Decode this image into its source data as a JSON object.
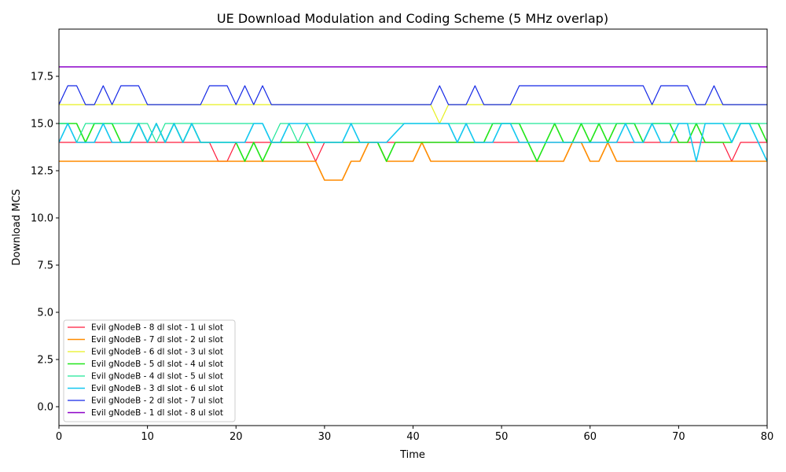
{
  "chart_data": {
    "type": "line",
    "title": "UE Download Modulation and Coding Scheme (5 MHz overlap)",
    "xlabel": "Time",
    "ylabel": "Download MCS",
    "xlim": [
      0,
      80
    ],
    "ylim": [
      -1,
      20
    ],
    "x_ticks": [
      0,
      10,
      20,
      30,
      40,
      50,
      60,
      70,
      80
    ],
    "y_ticks": [
      0.0,
      2.5,
      5.0,
      7.5,
      10.0,
      12.5,
      15.0,
      17.5
    ],
    "x_tick_labels": [
      "0",
      "10",
      "20",
      "30",
      "40",
      "50",
      "60",
      "70",
      "80"
    ],
    "y_tick_labels": [
      "0.0",
      "2.5",
      "5.0",
      "7.5",
      "10.0",
      "12.5",
      "15.0",
      "17.5"
    ],
    "grid": false,
    "legend_position": "lower-left",
    "series": [
      {
        "name": "Evil gNodeB - 8 dl slot - 1 ul slot",
        "color": "#ff1a3c",
        "width": 1.2,
        "points": [
          [
            0,
            14
          ],
          [
            17,
            14
          ],
          [
            18,
            13
          ],
          [
            19,
            13
          ],
          [
            20,
            14
          ],
          [
            28,
            14
          ],
          [
            29,
            13
          ],
          [
            30,
            14
          ],
          [
            75,
            14
          ],
          [
            76,
            13
          ],
          [
            77,
            14
          ],
          [
            80,
            14
          ]
        ]
      },
      {
        "name": "Evil gNodeB - 7 dl slot - 2 ul slot",
        "color": "#ff8c00",
        "width": 1.6,
        "points": [
          [
            0,
            13
          ],
          [
            29,
            13
          ],
          [
            30,
            12
          ],
          [
            32,
            12
          ],
          [
            33,
            13
          ],
          [
            34,
            13
          ],
          [
            35,
            14
          ],
          [
            36,
            14
          ],
          [
            37,
            13
          ],
          [
            40,
            13
          ],
          [
            41,
            14
          ],
          [
            42,
            13
          ],
          [
            57,
            13
          ],
          [
            58,
            14
          ],
          [
            59,
            14
          ],
          [
            60,
            13
          ],
          [
            61,
            13
          ],
          [
            62,
            14
          ],
          [
            63,
            13
          ],
          [
            80,
            13
          ]
        ]
      },
      {
        "name": "Evil gNodeB - 6 dl slot - 3 ul slot",
        "color": "#e6f01e",
        "width": 1.2,
        "points": [
          [
            0,
            16
          ],
          [
            42,
            16
          ],
          [
            43,
            15
          ],
          [
            44,
            16
          ],
          [
            80,
            16
          ]
        ]
      },
      {
        "name": "Evil gNodeB - 5 dl slot - 4 ul slot",
        "color": "#22e61a",
        "width": 1.6,
        "points": [
          [
            0,
            15
          ],
          [
            2,
            15
          ],
          [
            3,
            14
          ],
          [
            4,
            15
          ],
          [
            6,
            15
          ],
          [
            7,
            14
          ],
          [
            8,
            14
          ],
          [
            9,
            15
          ],
          [
            10,
            14
          ],
          [
            11,
            15
          ],
          [
            12,
            14
          ],
          [
            13,
            15
          ],
          [
            14,
            14
          ],
          [
            15,
            15
          ],
          [
            16,
            14
          ],
          [
            20,
            14
          ],
          [
            21,
            13
          ],
          [
            22,
            14
          ],
          [
            23,
            13
          ],
          [
            24,
            14
          ],
          [
            36,
            14
          ],
          [
            37,
            13
          ],
          [
            38,
            14
          ],
          [
            48,
            14
          ],
          [
            49,
            15
          ],
          [
            50,
            15
          ],
          [
            52,
            15
          ],
          [
            53,
            14
          ],
          [
            54,
            13
          ],
          [
            55,
            14
          ],
          [
            56,
            15
          ],
          [
            57,
            14
          ],
          [
            58,
            14
          ],
          [
            59,
            15
          ],
          [
            60,
            14
          ],
          [
            61,
            15
          ],
          [
            62,
            14
          ],
          [
            63,
            15
          ],
          [
            65,
            15
          ],
          [
            66,
            14
          ],
          [
            67,
            15
          ],
          [
            69,
            15
          ],
          [
            70,
            14
          ],
          [
            71,
            14
          ],
          [
            72,
            15
          ],
          [
            73,
            14
          ],
          [
            76,
            14
          ],
          [
            77,
            15
          ],
          [
            79,
            15
          ],
          [
            80,
            14
          ]
        ]
      },
      {
        "name": "Evil gNodeB - 4 dl slot - 5 ul slot",
        "color": "#1ee696",
        "width": 1.2,
        "points": [
          [
            0,
            15
          ],
          [
            1,
            15
          ],
          [
            2,
            14
          ],
          [
            3,
            15
          ],
          [
            10,
            15
          ],
          [
            11,
            14
          ],
          [
            12,
            15
          ],
          [
            23,
            15
          ],
          [
            24,
            14
          ],
          [
            25,
            15
          ],
          [
            26,
            15
          ],
          [
            27,
            14
          ],
          [
            28,
            15
          ],
          [
            80,
            15
          ]
        ]
      },
      {
        "name": "Evil gNodeB - 3 dl slot - 6 ul slot",
        "color": "#14c8f0",
        "width": 1.6,
        "points": [
          [
            0,
            14
          ],
          [
            1,
            15
          ],
          [
            2,
            14
          ],
          [
            4,
            14
          ],
          [
            5,
            15
          ],
          [
            6,
            14
          ],
          [
            8,
            14
          ],
          [
            9,
            15
          ],
          [
            10,
            14
          ],
          [
            11,
            15
          ],
          [
            12,
            14
          ],
          [
            13,
            15
          ],
          [
            14,
            14
          ],
          [
            15,
            15
          ],
          [
            16,
            14
          ],
          [
            21,
            14
          ],
          [
            22,
            15
          ],
          [
            23,
            15
          ],
          [
            24,
            14
          ],
          [
            25,
            14
          ],
          [
            26,
            15
          ],
          [
            28,
            15
          ],
          [
            29,
            14
          ],
          [
            32,
            14
          ],
          [
            33,
            15
          ],
          [
            34,
            14
          ],
          [
            37,
            14
          ],
          [
            39,
            15
          ],
          [
            44,
            15
          ],
          [
            45,
            14
          ],
          [
            46,
            15
          ],
          [
            47,
            14
          ],
          [
            49,
            14
          ],
          [
            50,
            15
          ],
          [
            51,
            15
          ],
          [
            52,
            14
          ],
          [
            63,
            14
          ],
          [
            64,
            15
          ],
          [
            65,
            14
          ],
          [
            66,
            14
          ],
          [
            67,
            15
          ],
          [
            68,
            14
          ],
          [
            69,
            14
          ],
          [
            70,
            15
          ],
          [
            71,
            15
          ],
          [
            72,
            13
          ],
          [
            73,
            15
          ],
          [
            75,
            15
          ],
          [
            76,
            14
          ],
          [
            77,
            15
          ],
          [
            78,
            15
          ],
          [
            80,
            13
          ]
        ]
      },
      {
        "name": "Evil gNodeB - 2 dl slot - 7 ul slot",
        "color": "#1428e6",
        "width": 1.2,
        "points": [
          [
            0,
            16
          ],
          [
            1,
            17
          ],
          [
            2,
            17
          ],
          [
            3,
            16
          ],
          [
            4,
            16
          ],
          [
            5,
            17
          ],
          [
            6,
            16
          ],
          [
            7,
            17
          ],
          [
            9,
            17
          ],
          [
            10,
            16
          ],
          [
            16,
            16
          ],
          [
            17,
            17
          ],
          [
            19,
            17
          ],
          [
            20,
            16
          ],
          [
            21,
            17
          ],
          [
            22,
            16
          ],
          [
            23,
            17
          ],
          [
            24,
            16
          ],
          [
            42,
            16
          ],
          [
            43,
            17
          ],
          [
            44,
            16
          ],
          [
            46,
            16
          ],
          [
            47,
            17
          ],
          [
            48,
            16
          ],
          [
            51,
            16
          ],
          [
            52,
            17
          ],
          [
            66,
            17
          ],
          [
            67,
            16
          ],
          [
            68,
            17
          ],
          [
            71,
            17
          ],
          [
            72,
            16
          ],
          [
            73,
            16
          ],
          [
            74,
            17
          ],
          [
            75,
            16
          ],
          [
            80,
            16
          ]
        ]
      },
      {
        "name": "Evil gNodeB - 1 dl slot - 8 ul slot",
        "color": "#8c00c8",
        "width": 1.6,
        "points": [
          [
            0,
            18
          ],
          [
            80,
            18
          ]
        ]
      }
    ]
  }
}
